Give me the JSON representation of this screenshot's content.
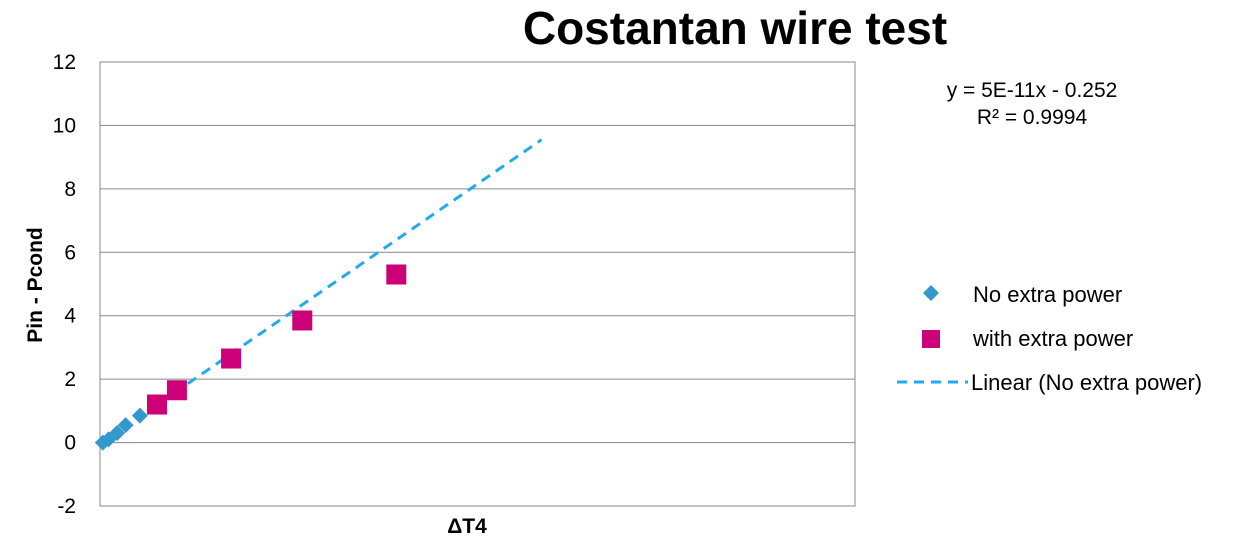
{
  "chart_data": {
    "type": "scatter",
    "title": "Costantan wire test",
    "xlabel": "ΔT4",
    "ylabel": "Pin - Pcond",
    "ylim": [
      -2,
      12
    ],
    "yticks": [
      -2,
      0,
      2,
      4,
      6,
      8,
      10,
      12
    ],
    "xticks_shown": false,
    "grid": "horizontal",
    "legend_position": "right",
    "series": [
      {
        "name": "No extra power",
        "marker": "diamond",
        "color": "#3399CC",
        "x": [
          0.01,
          0.03,
          0.06,
          0.09,
          0.14
        ],
        "y": [
          0.0,
          0.1,
          0.3,
          0.55,
          0.85
        ]
      },
      {
        "name": "with extra power",
        "marker": "square",
        "color": "#CC0077",
        "x": [
          0.2,
          0.27,
          0.46,
          0.71,
          1.04
        ],
        "y": [
          1.2,
          1.65,
          2.65,
          3.85,
          5.3
        ]
      }
    ],
    "trendline": {
      "name": "Linear (No extra power)",
      "color": "#22AAEE",
      "style": "dashed",
      "x": [
        0.21,
        1.55
      ],
      "y": [
        1.25,
        9.55
      ]
    },
    "annotation": {
      "equation": "y = 5E-11x - 0.252",
      "r_squared": "R² = 0.9994"
    }
  }
}
